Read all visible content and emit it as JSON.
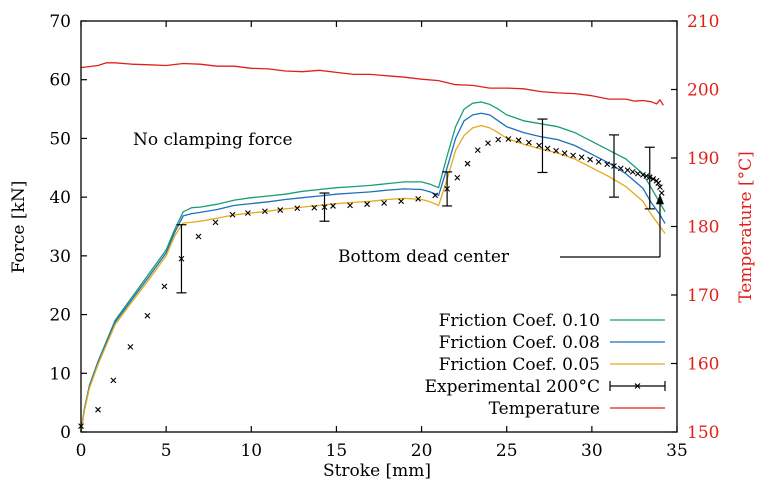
{
  "chart_data": {
    "type": "line",
    "xlabel": "Stroke [mm]",
    "ylabel": "Force [kN]",
    "y2label": "Temperature [°C]",
    "xlim": [
      0,
      35
    ],
    "ylim": [
      0,
      70
    ],
    "y2lim": [
      150,
      210
    ],
    "x_ticks": [
      "0",
      "5",
      "10",
      "15",
      "20",
      "25",
      "30",
      "35"
    ],
    "y_ticks": [
      "0",
      "10",
      "20",
      "30",
      "40",
      "50",
      "60",
      "70"
    ],
    "y2_ticks": [
      "150",
      "160",
      "170",
      "180",
      "190",
      "200",
      "210"
    ],
    "grid": false,
    "legend_position": "bottom-right",
    "annotations": [
      {
        "text": "No clamping force",
        "x": 8.5,
        "y": 48.5
      },
      {
        "text": "Bottom dead center",
        "x": 22.5,
        "y": 30.5,
        "arrow_to": [
          34.0,
          40.5
        ]
      }
    ],
    "series": [
      {
        "name": "Friction Coef. 0.10",
        "color": "#1a9e77",
        "axis": "left",
        "style": "line",
        "x": [
          0,
          0.2,
          0.5,
          1,
          2,
          3,
          4,
          5,
          5.5,
          6,
          6.5,
          7,
          8,
          9,
          10,
          11,
          12,
          13,
          14,
          15,
          16,
          17,
          18,
          19,
          20,
          20.5,
          21,
          21.5,
          22,
          22.5,
          23,
          23.5,
          24,
          24.5,
          25,
          26,
          27,
          28,
          29,
          30,
          31,
          32,
          33,
          33.5,
          34,
          34.3
        ],
        "y": [
          0,
          4,
          8,
          12,
          19,
          23,
          27,
          31,
          34.5,
          37.5,
          38.2,
          38.3,
          38.8,
          39.5,
          39.9,
          40.2,
          40.5,
          41,
          41.3,
          41.6,
          41.8,
          42,
          42.3,
          42.6,
          42.6,
          42.2,
          41.6,
          47,
          52,
          55,
          56,
          56.2,
          55.8,
          55,
          54,
          53,
          52.5,
          52,
          51,
          49.5,
          48,
          46.5,
          44,
          41.5,
          39,
          37.5
        ]
      },
      {
        "name": "Friction Coef. 0.08",
        "color": "#1f6fbf",
        "axis": "left",
        "style": "line",
        "x": [
          0,
          0.2,
          0.5,
          1,
          2,
          3,
          4,
          5,
          5.5,
          6,
          6.5,
          7,
          8,
          9,
          10,
          11,
          12,
          13,
          14,
          15,
          16,
          17,
          18,
          19,
          20,
          20.5,
          21,
          21.5,
          22,
          22.5,
          23,
          23.5,
          24,
          24.5,
          25,
          26,
          27,
          28,
          29,
          30,
          31,
          32,
          33,
          33.5,
          34,
          34.3
        ],
        "y": [
          0,
          3.8,
          7.8,
          11.8,
          18.7,
          22.6,
          26.5,
          30.5,
          34,
          36.8,
          37.2,
          37.4,
          37.9,
          38.6,
          38.9,
          39.2,
          39.6,
          39.9,
          40.2,
          40.5,
          40.7,
          40.9,
          41.2,
          41.4,
          41.3,
          40.9,
          40.3,
          45,
          50,
          53,
          54,
          54.3,
          54,
          53,
          52,
          51,
          50.3,
          49.8,
          48.8,
          47.3,
          45.8,
          44,
          41.5,
          39,
          37,
          35.5
        ]
      },
      {
        "name": "Friction Coef. 0.05",
        "color": "#e8a91c",
        "axis": "left",
        "style": "line",
        "x": [
          0,
          0.2,
          0.5,
          1,
          2,
          3,
          4,
          5,
          5.5,
          6,
          6.5,
          7,
          8,
          9,
          10,
          11,
          12,
          13,
          14,
          15,
          16,
          17,
          18,
          19,
          20,
          20.5,
          21,
          21.5,
          22,
          22.5,
          23,
          23.5,
          24,
          24.5,
          25,
          26,
          27,
          28,
          29,
          30,
          31,
          32,
          33,
          33.5,
          34,
          34.3
        ],
        "y": [
          0,
          3.6,
          7.5,
          11.5,
          18.3,
          22.2,
          26,
          30,
          33.4,
          35.6,
          35.7,
          35.9,
          36.4,
          37,
          37.3,
          37.6,
          38,
          38.3,
          38.6,
          38.9,
          39.1,
          39.3,
          39.6,
          39.8,
          39.6,
          39.2,
          38.6,
          43,
          48,
          50.5,
          51.8,
          52.2,
          51.8,
          51,
          50,
          49,
          48.2,
          47.5,
          46.5,
          45,
          43.5,
          41.8,
          39.3,
          37,
          35,
          33.8
        ]
      },
      {
        "name": "Experimental 200°C",
        "color": "#000000",
        "axis": "left",
        "style": "cross",
        "x": [
          0,
          1,
          1.9,
          2.9,
          3.9,
          4.9,
          5.9,
          6.9,
          7.9,
          8.9,
          9.8,
          10.8,
          11.7,
          12.7,
          13.7,
          14.3,
          14.8,
          15.8,
          16.8,
          17.8,
          18.8,
          19.8,
          20.8,
          21.5,
          22.1,
          22.7,
          23.3,
          23.9,
          24.5,
          25.1,
          25.7,
          26.3,
          26.9,
          27.4,
          27.9,
          28.4,
          28.9,
          29.4,
          29.9,
          30.4,
          30.9,
          31.3,
          31.7,
          32.1,
          32.4,
          32.7,
          33,
          33.2,
          33.4,
          33.6,
          33.8,
          33.9,
          34,
          34.1
        ],
        "y": [
          1,
          3.8,
          8.8,
          14.5,
          19.8,
          24.8,
          29.5,
          33.3,
          35.7,
          37,
          37.3,
          37.6,
          37.8,
          38.1,
          38.2,
          38.3,
          38.5,
          38.6,
          38.8,
          39,
          39.3,
          39.7,
          40.3,
          41.4,
          43.3,
          45.7,
          48,
          49.2,
          49.8,
          49.9,
          49.7,
          49.3,
          48.8,
          48.3,
          47.9,
          47.5,
          47.1,
          46.8,
          46.4,
          46,
          45.6,
          45.3,
          44.9,
          44.6,
          44.3,
          44,
          43.8,
          43.6,
          43.4,
          43.1,
          42.8,
          42.4,
          41.7,
          40.7
        ],
        "error_bars": [
          {
            "x": 5.9,
            "low": 23.7,
            "high": 35.3
          },
          {
            "x": 14.3,
            "low": 35.9,
            "high": 40.7
          },
          {
            "x": 21.5,
            "low": 38.5,
            "high": 44.3
          },
          {
            "x": 27.1,
            "low": 44.2,
            "high": 53.3
          },
          {
            "x": 31.3,
            "low": 40.0,
            "high": 50.6
          },
          {
            "x": 33.4,
            "low": 38.0,
            "high": 48.5
          }
        ]
      },
      {
        "name": "Temperature",
        "color": "#e0201b",
        "axis": "right",
        "style": "line",
        "x": [
          0,
          1,
          1.5,
          2,
          3,
          4,
          5,
          6,
          7,
          8,
          9,
          10,
          11,
          12,
          13,
          14,
          15,
          16,
          17,
          18,
          19,
          20,
          21,
          22,
          23,
          24,
          25,
          26,
          27,
          28,
          29,
          30,
          31,
          32,
          32.5,
          33,
          33.5,
          33.8,
          34,
          34.2
        ],
        "y": [
          203.2,
          203.5,
          203.9,
          203.9,
          203.7,
          203.6,
          203.5,
          203.8,
          203.7,
          203.4,
          203.4,
          203.1,
          203,
          202.7,
          202.6,
          202.8,
          202.5,
          202.2,
          202.2,
          202,
          201.8,
          201.5,
          201.3,
          200.7,
          200.6,
          200.2,
          200.2,
          200.1,
          199.7,
          199.5,
          199.4,
          199.1,
          198.6,
          198.6,
          198.3,
          198.4,
          198.2,
          197.9,
          198.5,
          197.7
        ]
      }
    ]
  }
}
